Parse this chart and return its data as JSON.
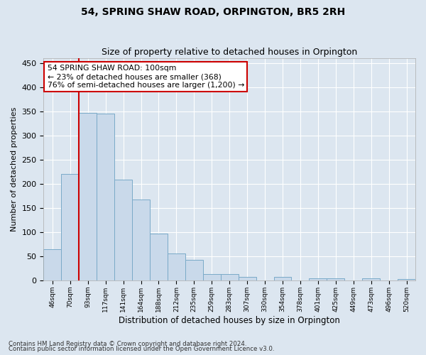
{
  "title": "54, SPRING SHAW ROAD, ORPINGTON, BR5 2RH",
  "subtitle": "Size of property relative to detached houses in Orpington",
  "xlabel": "Distribution of detached houses by size in Orpington",
  "ylabel": "Number of detached properties",
  "bar_color": "#c9d9ea",
  "bar_edge_color": "#7aaac8",
  "background_color": "#dce6f0",
  "fig_background_color": "#dce6f0",
  "grid_color": "#ffffff",
  "categories": [
    "46sqm",
    "70sqm",
    "93sqm",
    "117sqm",
    "141sqm",
    "164sqm",
    "188sqm",
    "212sqm",
    "235sqm",
    "259sqm",
    "283sqm",
    "307sqm",
    "330sqm",
    "354sqm",
    "378sqm",
    "401sqm",
    "425sqm",
    "449sqm",
    "473sqm",
    "496sqm",
    "520sqm"
  ],
  "values": [
    65,
    220,
    347,
    345,
    208,
    167,
    97,
    56,
    42,
    13,
    13,
    7,
    0,
    7,
    0,
    5,
    4,
    0,
    4,
    0,
    3
  ],
  "ylim": [
    0,
    460
  ],
  "yticks": [
    0,
    50,
    100,
    150,
    200,
    250,
    300,
    350,
    400,
    450
  ],
  "property_line_x": 1.5,
  "annotation_text": "54 SPRING SHAW ROAD: 100sqm\n← 23% of detached houses are smaller (368)\n76% of semi-detached houses are larger (1,200) →",
  "annotation_box_color": "#ffffff",
  "annotation_box_edge": "#cc0000",
  "property_line_color": "#cc0000",
  "footer_line1": "Contains HM Land Registry data © Crown copyright and database right 2024.",
  "footer_line2": "Contains public sector information licensed under the Open Government Licence v3.0."
}
